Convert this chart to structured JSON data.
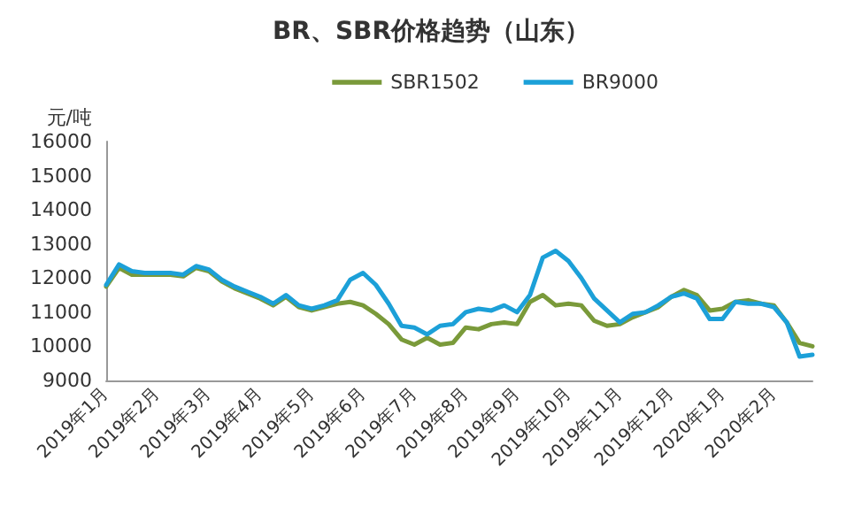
{
  "chart_data": {
    "type": "line",
    "title": "BR、SBR价格趋势（山东）",
    "ylabel": "元/吨",
    "categories": [
      "2019年1月",
      null,
      null,
      null,
      "2019年2月",
      null,
      null,
      null,
      "2019年3月",
      null,
      null,
      null,
      "2019年4月",
      null,
      null,
      null,
      "2019年5月",
      null,
      null,
      null,
      "2019年6月",
      null,
      null,
      null,
      "2019年7月",
      null,
      null,
      null,
      "2019年8月",
      null,
      null,
      null,
      "2019年9月",
      null,
      null,
      null,
      "2019年10月",
      null,
      null,
      null,
      "2019年11月",
      null,
      null,
      null,
      "2019年12月",
      null,
      null,
      null,
      "2020年1月",
      null,
      null,
      null,
      "2020年2月",
      null,
      null,
      null
    ],
    "series": [
      {
        "name": "SBR1502",
        "color": "#7a9a3a",
        "values": [
          11750,
          12300,
          12100,
          12100,
          12100,
          12100,
          12050,
          12300,
          12200,
          11900,
          11700,
          11550,
          11400,
          11200,
          11450,
          11150,
          11050,
          11150,
          11250,
          11300,
          11200,
          10950,
          10650,
          10200,
          10050,
          10250,
          10050,
          10100,
          10550,
          10500,
          10650,
          10700,
          10650,
          11300,
          11500,
          11200,
          11250,
          11200,
          10750,
          10600,
          10650,
          10850,
          11000,
          11150,
          11450,
          11650,
          11500,
          11050,
          11100,
          11300,
          11350,
          11250,
          11200,
          10700,
          10100,
          10000
        ]
      },
      {
        "name": "BR9000",
        "color": "#1ca0d8",
        "values": [
          11800,
          12400,
          12200,
          12150,
          12150,
          12150,
          12100,
          12350,
          12250,
          11950,
          11750,
          11600,
          11450,
          11250,
          11500,
          11200,
          11100,
          11200,
          11350,
          11950,
          12150,
          11800,
          11250,
          10600,
          10550,
          10350,
          10600,
          10650,
          11000,
          11100,
          11050,
          11200,
          11000,
          11500,
          12600,
          12800,
          12500,
          12000,
          11400,
          11050,
          10700,
          10950,
          11000,
          11200,
          11450,
          11550,
          11400,
          10800,
          10800,
          11300,
          11250,
          11250,
          11150,
          10700,
          9700,
          9750
        ]
      }
    ],
    "ylim": [
      9000,
      16000
    ],
    "yticks": [
      9000,
      10000,
      11000,
      12000,
      13000,
      14000,
      15000,
      16000
    ],
    "legend": "top right",
    "grid": false,
    "marker": "none",
    "line_style": "solid"
  }
}
